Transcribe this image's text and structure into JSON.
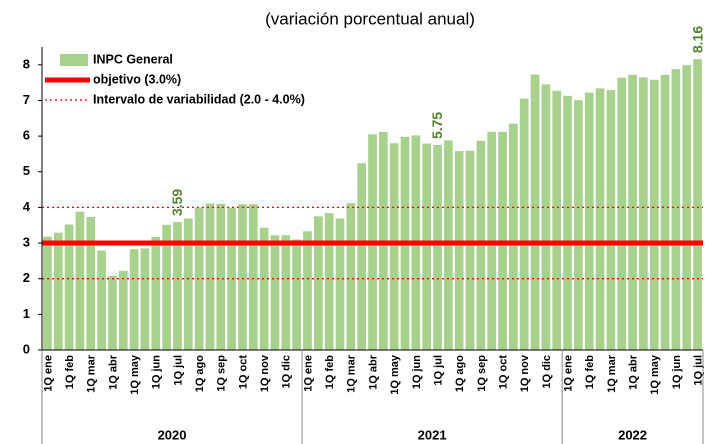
{
  "chart_data": {
    "type": "bar",
    "subtitle": "(variación porcentual anual)",
    "categories": [
      "1Q ene",
      null,
      "1Q feb",
      null,
      "1Q mar",
      null,
      "1Q abr",
      null,
      "1Q may",
      null,
      "1Q jun",
      null,
      "1Q jul",
      null,
      "1Q ago",
      null,
      "1Q sep",
      null,
      "1Q oct",
      null,
      "1Q nov",
      null,
      "1Q dic",
      null,
      "1Q ene",
      null,
      "1Q feb",
      null,
      "1Q mar",
      null,
      "1Q abr",
      null,
      "1Q may",
      null,
      "1Q jun",
      null,
      "1Q jul",
      null,
      "1Q ago",
      null,
      "1Q sep",
      null,
      "1Q oct",
      null,
      "1Q nov",
      null,
      "1Q dic",
      null,
      "1Q ene",
      null,
      "1Q feb",
      null,
      "1Q mar",
      null,
      "1Q abr",
      null,
      "1Q may",
      null,
      "1Q jun",
      null,
      "1Q jul"
    ],
    "series": [
      {
        "name": "INPC General",
        "color": "#a9d18e",
        "values": [
          3.18,
          3.29,
          3.52,
          3.88,
          3.73,
          2.79,
          2.08,
          2.22,
          2.83,
          2.85,
          3.17,
          3.51,
          3.59,
          3.69,
          3.99,
          4.11,
          4.1,
          3.99,
          4.09,
          4.09,
          3.43,
          3.22,
          3.22,
          3.1,
          3.33,
          3.75,
          3.84,
          3.69,
          4.12,
          5.24,
          6.05,
          6.12,
          5.8,
          5.98,
          6.02,
          5.79,
          5.75,
          5.88,
          5.58,
          5.59,
          5.87,
          6.12,
          6.12,
          6.35,
          7.05,
          7.73,
          7.45,
          7.27,
          7.13,
          7.01,
          7.22,
          7.34,
          7.29,
          7.64,
          7.72,
          7.65,
          7.58,
          7.72,
          7.88,
          7.99,
          8.16
        ],
        "value_labels": [
          null,
          null,
          null,
          null,
          null,
          null,
          null,
          null,
          null,
          null,
          null,
          null,
          "3.59",
          null,
          null,
          null,
          null,
          null,
          null,
          null,
          null,
          null,
          null,
          null,
          null,
          null,
          null,
          null,
          null,
          null,
          null,
          null,
          null,
          null,
          null,
          null,
          "5.75",
          null,
          null,
          null,
          null,
          null,
          null,
          null,
          null,
          null,
          null,
          null,
          null,
          null,
          null,
          null,
          null,
          null,
          null,
          null,
          null,
          null,
          null,
          null,
          "8.16"
        ]
      }
    ],
    "reference_lines": [
      {
        "name": "objetivo (3.0%)",
        "values": [
          3.0
        ],
        "color": "#ff0000",
        "style": "solid"
      },
      {
        "name": "Intervalo de variabilidad (2.0 - 4.0%)",
        "values": [
          2.0,
          4.0
        ],
        "color": "#ff0000",
        "style": "dotted"
      }
    ],
    "groups": [
      {
        "label": "2020",
        "size": 24
      },
      {
        "label": "2021",
        "size": 24
      },
      {
        "label": "2022",
        "size": 13
      }
    ],
    "ylim": [
      0,
      8.5
    ],
    "yticks": [
      0,
      1,
      2,
      3,
      4,
      5,
      6,
      7,
      8
    ]
  }
}
